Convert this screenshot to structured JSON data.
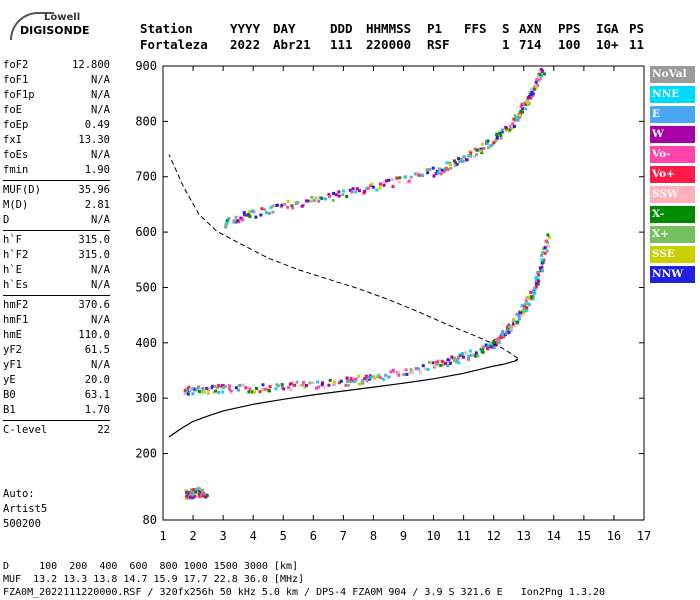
{
  "logo": {
    "line1": "Lowell",
    "line2": "DIGISONDE"
  },
  "header": {
    "row1": [
      "Station",
      "YYYY",
      "DAY",
      "DDD",
      "HHMMSS",
      "P1",
      "FFS",
      "S",
      "AXN",
      "PPS",
      "IGA",
      "PS"
    ],
    "row2": [
      "Fortaleza",
      "2022",
      "Abr21",
      "111",
      "220000",
      "RSF",
      "1",
      "714",
      "100",
      "10+",
      "11"
    ]
  },
  "params": [
    {
      "label": "foF2",
      "value": "12.800"
    },
    {
      "label": "foF1",
      "value": "N/A"
    },
    {
      "label": "foF1p",
      "value": "N/A"
    },
    {
      "label": "foE",
      "value": "N/A"
    },
    {
      "label": "foEp",
      "value": "0.49"
    },
    {
      "label": "fxI",
      "value": "13.30"
    },
    {
      "label": "foEs",
      "value": "N/A"
    },
    {
      "label": "fmin",
      "value": "1.90"
    },
    {
      "sep": true
    },
    {
      "label": "MUF(D)",
      "value": "35.96"
    },
    {
      "label": "M(D)",
      "value": "2.81"
    },
    {
      "label": "D",
      "value": "N/A"
    },
    {
      "sep": true
    },
    {
      "label": "h`F",
      "value": "315.0"
    },
    {
      "label": "h`F2",
      "value": "315.0"
    },
    {
      "label": "h`E",
      "value": "N/A"
    },
    {
      "label": "h`Es",
      "value": "N/A"
    },
    {
      "sep": true
    },
    {
      "label": "hmF2",
      "value": "370.6"
    },
    {
      "label": "hmF1",
      "value": "N/A"
    },
    {
      "label": "hmE",
      "value": "110.0"
    },
    {
      "label": "yF2",
      "value": "61.5"
    },
    {
      "label": "yF1",
      "value": "N/A"
    },
    {
      "label": "yE",
      "value": "20.0"
    },
    {
      "label": "B0",
      "value": "63.1"
    },
    {
      "label": "B1",
      "value": "1.70"
    },
    {
      "sep": true
    },
    {
      "label": "C-level",
      "value": "22"
    }
  ],
  "auto": [
    "Auto:",
    "Artist5",
    "500200"
  ],
  "legend": [
    {
      "label": "NoVal",
      "color": "#9a9a9a"
    },
    {
      "label": "NNE",
      "color": "#00d8ff"
    },
    {
      "label": "E",
      "color": "#4aa6f0"
    },
    {
      "label": "W",
      "color": "#a800a8"
    },
    {
      "label": "Vo-",
      "color": "#ff44aa"
    },
    {
      "label": "Vo+",
      "color": "#ff1a4a"
    },
    {
      "label": "SSW",
      "color": "#ffb0b8"
    },
    {
      "label": "X-",
      "color": "#008a00"
    },
    {
      "label": "X+",
      "color": "#76c060"
    },
    {
      "label": "SSE",
      "color": "#c8d000"
    },
    {
      "label": "NNW",
      "color": "#2020e0"
    }
  ],
  "footer": {
    "line1": "D     100  200  400  600  800 1000 1500 3000 [km]",
    "line2": "MUF  13.2 13.3 13.8 14.7 15.9 17.7 22.8 36.0 [MHz]",
    "line3": "FZA0M_2022111220000.RSF / 320fx256h 50 kHz 5.0 km / DPS-4 FZA0M 904 / 3.9 S 321.6 E   Ion2Png 1.3.20"
  },
  "chart_data": {
    "type": "scatter",
    "xlim": [
      1,
      17
    ],
    "ylim": [
      80,
      900
    ],
    "x_ticks": [
      1,
      2,
      3,
      4,
      5,
      6,
      7,
      8,
      9,
      10,
      11,
      12,
      13,
      14,
      15,
      16,
      17
    ],
    "y_ticks": [
      80,
      200,
      300,
      400,
      500,
      600,
      700,
      800,
      900
    ],
    "grid": false,
    "legend_position": "right",
    "profile_line": {
      "x": [
        1.2,
        1.6,
        2.0,
        2.5,
        3.0,
        4.0,
        5.0,
        6.0,
        7.0,
        8.0,
        9.0,
        10.0,
        11.0,
        11.6,
        12.0,
        12.3,
        12.5,
        12.7,
        12.8,
        12.75
      ],
      "y": [
        230,
        245,
        258,
        268,
        277,
        289,
        298,
        306,
        313,
        320,
        327,
        335,
        345,
        353,
        358,
        361,
        364,
        367,
        371,
        367
      ]
    },
    "dashed_line": {
      "x": [
        12.8,
        12.6,
        12.2,
        11.5,
        10.5,
        9.5,
        8.5,
        7.5,
        6.5,
        5.5,
        4.5,
        3.5,
        2.8,
        2.2,
        1.7,
        1.2
      ],
      "y": [
        372,
        380,
        393,
        410,
        432,
        456,
        478,
        498,
        515,
        532,
        553,
        581,
        601,
        632,
        680,
        740
      ]
    },
    "traces": [
      {
        "name": "F2 trace",
        "x": [
          1.7,
          2.0,
          2.5,
          3.0,
          4.0,
          5.0,
          6.0,
          7.0,
          7.5,
          8.0,
          9.0,
          10.0,
          10.5,
          11.0,
          11.5,
          11.8,
          12.0,
          12.2,
          12.4,
          12.6,
          12.8,
          13.0,
          13.2,
          13.4,
          13.6,
          13.8
        ],
        "y": [
          316,
          317,
          318,
          319,
          320,
          323,
          327,
          332,
          335,
          339,
          350,
          362,
          370,
          378,
          388,
          395,
          402,
          412,
          424,
          437,
          450,
          468,
          486,
          512,
          555,
          600
        ]
      },
      {
        "name": "second trace",
        "x": [
          3.0,
          3.5,
          4.0,
          5.0,
          6.0,
          7.0,
          8.0,
          9.0,
          10.0,
          10.5,
          11.0,
          11.5,
          12.0,
          12.5,
          12.8,
          13.0,
          13.2,
          13.4,
          13.6
        ],
        "y": [
          618,
          628,
          635,
          650,
          660,
          672,
          685,
          697,
          712,
          722,
          735,
          752,
          770,
          790,
          812,
          832,
          848,
          870,
          895
        ]
      },
      {
        "name": "low trace",
        "x": [
          1.7,
          1.8,
          1.9,
          2.0,
          2.2,
          2.4
        ],
        "y": [
          128,
          130,
          129,
          132,
          133,
          131
        ]
      }
    ]
  }
}
